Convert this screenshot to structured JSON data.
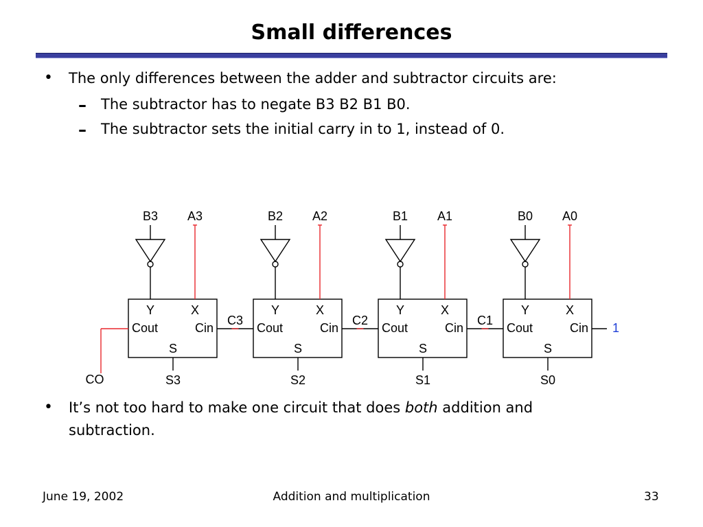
{
  "slide": {
    "title": "Small differences",
    "bullet1": "The only differences between the adder and subtractor circuits are:",
    "sub1": "The subtractor has to negate B3 B2 B1 B0.",
    "sub2": "The subtractor sets the initial carry in to 1, instead of 0.",
    "bullet2_part1": "It’s not too hard to make one circuit that does ",
    "bullet2_emph": "both",
    "bullet2_part2": " addition and",
    "bullet2_line2": "subtraction.",
    "bullet_glyph": "•",
    "dash_glyph": "–"
  },
  "diagram": {
    "stages": [
      {
        "b": "B3",
        "a": "A3",
        "y": "Y",
        "x": "X",
        "cout": "Cout",
        "cin": "Cin",
        "s": "S",
        "sum": "S3"
      },
      {
        "b": "B2",
        "a": "A2",
        "y": "Y",
        "x": "X",
        "cout": "Cout",
        "cin": "Cin",
        "s": "S",
        "sum": "S2"
      },
      {
        "b": "B1",
        "a": "A1",
        "y": "Y",
        "x": "X",
        "cout": "Cout",
        "cin": "Cin",
        "s": "S",
        "sum": "S1"
      },
      {
        "b": "B0",
        "a": "A0",
        "y": "Y",
        "x": "X",
        "cout": "Cout",
        "cin": "Cin",
        "s": "S",
        "sum": "S0"
      }
    ],
    "carries": [
      "C3",
      "C2",
      "C1"
    ],
    "carry_out": "CO",
    "carry_in": "1",
    "colors": {
      "wire": "#000000",
      "highlight": "#e8262b",
      "carry_in": "#1f3fd6"
    }
  },
  "footer": {
    "date": "June 19, 2002",
    "topic": "Addition and multiplication",
    "page": "33"
  }
}
